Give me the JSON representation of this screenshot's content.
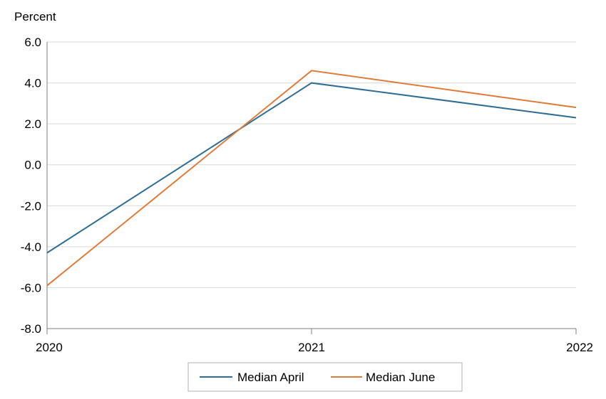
{
  "chart_data": {
    "type": "line",
    "title": "",
    "ylabel": "Percent",
    "xlabel": "",
    "x": [
      "2020",
      "2021",
      "2022"
    ],
    "ylim": [
      -8.0,
      6.0
    ],
    "yticks": [
      "6.0",
      "4.0",
      "2.0",
      "0.0",
      "-2.0",
      "-4.0",
      "-6.0",
      "-8.0"
    ],
    "ytick_values": [
      6,
      4,
      2,
      0,
      -2,
      -4,
      -6,
      -8
    ],
    "grid": true,
    "legend_position": "bottom",
    "series": [
      {
        "name": "Median April",
        "color": "#2e6e96",
        "values": [
          -4.3,
          4.0,
          2.3
        ]
      },
      {
        "name": "Median June",
        "color": "#e07b39",
        "values": [
          -5.9,
          4.6,
          2.8
        ]
      }
    ]
  }
}
